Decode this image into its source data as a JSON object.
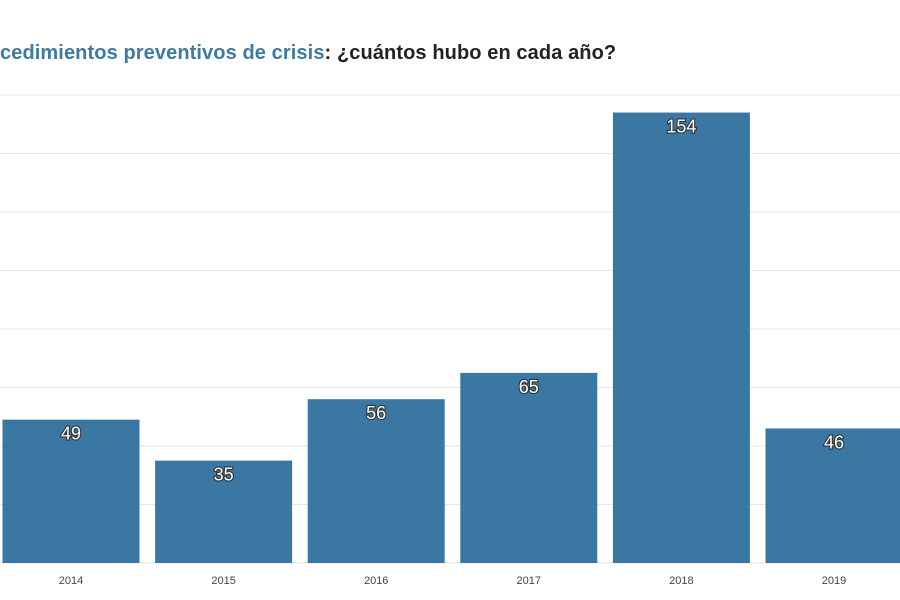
{
  "chart_data": {
    "type": "bar",
    "title_highlight": "cedimientos preventivos de crisis",
    "title_rest": ": ¿cuántos hubo en cada año?",
    "categories": [
      "2014",
      "2015",
      "2016",
      "2017",
      "2018",
      "2019"
    ],
    "values": [
      49,
      35,
      56,
      65,
      154,
      46
    ],
    "xlabel": "",
    "ylabel": "",
    "ylim": [
      0,
      160
    ],
    "grid": true,
    "bar_color": "#3a77a2",
    "title_accent_color": "#3f7aa0"
  }
}
